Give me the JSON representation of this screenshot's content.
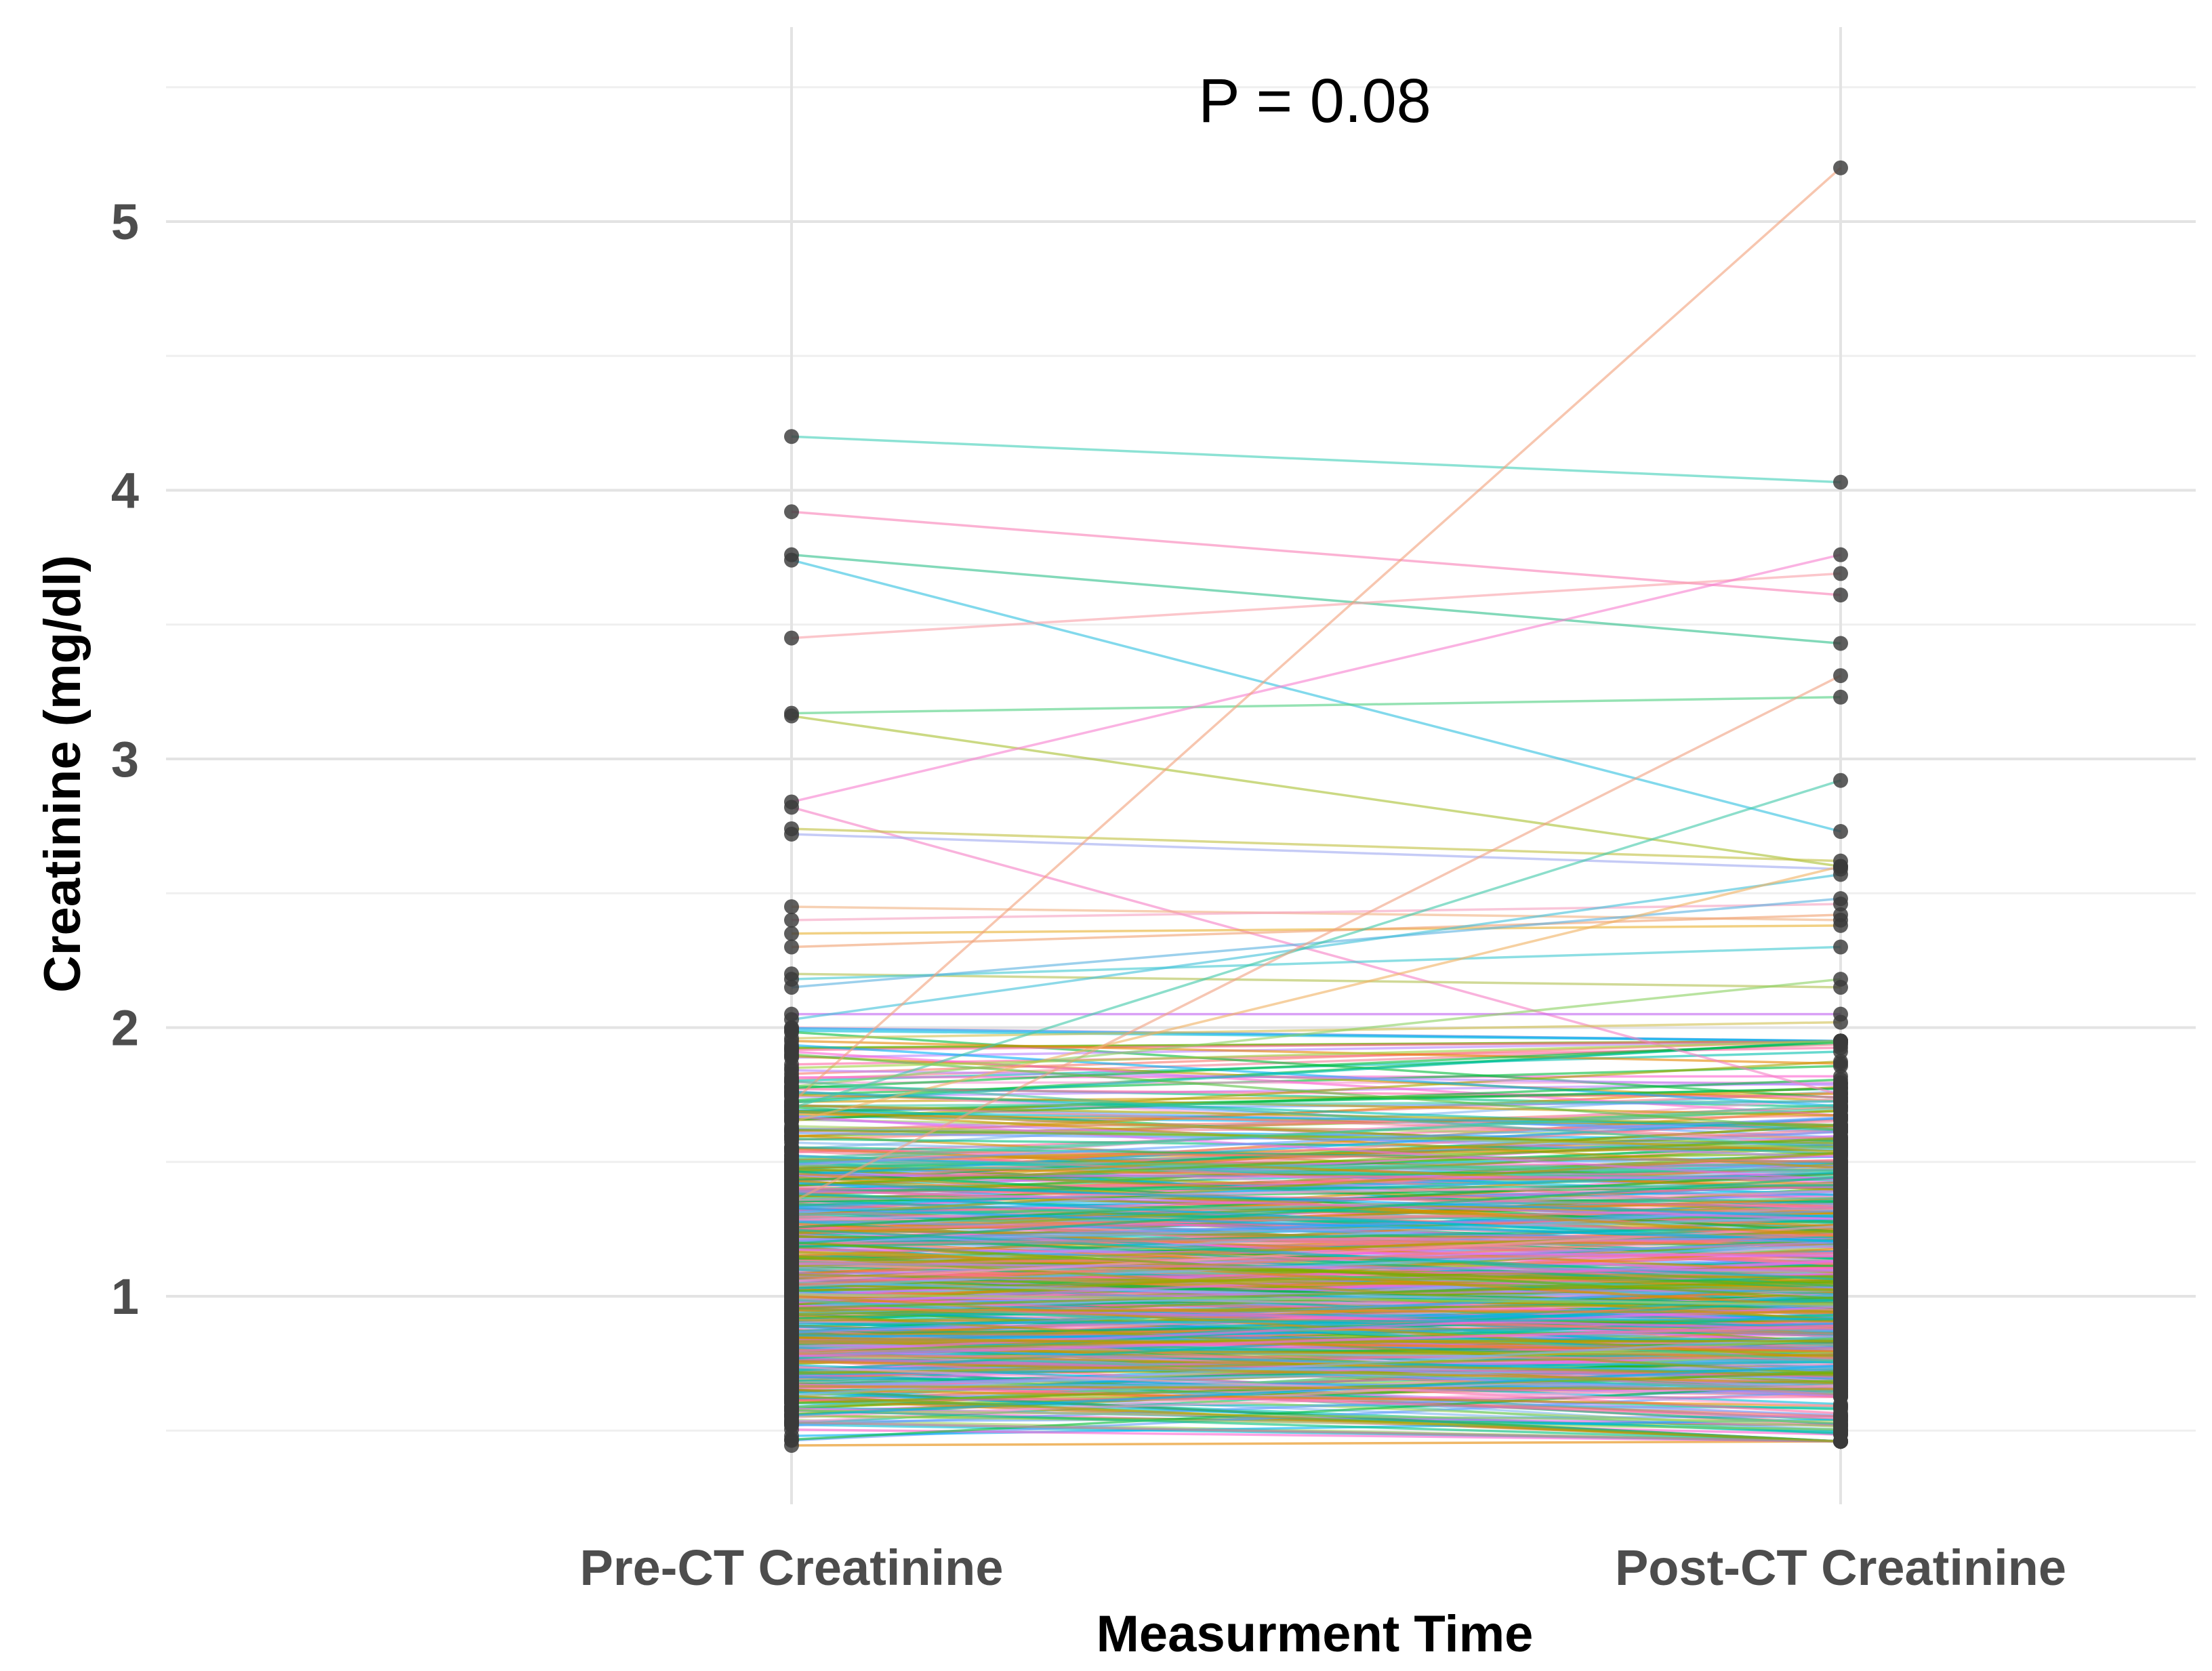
{
  "chart_data": {
    "type": "line",
    "title": "",
    "annotation": "P = 0.08",
    "xlabel": "Measurment Time",
    "ylabel": "Creatinine (mg/dl)",
    "categories": [
      "Pre-CT Creatinine",
      "Post-CT Creatinine"
    ],
    "ylim": [
      0.4,
      5.5
    ],
    "yticks": [
      1,
      2,
      3,
      4,
      5
    ],
    "grid": true,
    "legend": "none",
    "highlighted_pairs": [
      {
        "pre": 4.2,
        "post": 4.03,
        "color": "#3fcfb8"
      },
      {
        "pre": 3.92,
        "post": 3.61,
        "color": "#f97fb5"
      },
      {
        "pre": 3.76,
        "post": 3.43,
        "color": "#2fc08a"
      },
      {
        "pre": 3.74,
        "post": 2.73,
        "color": "#2fc0e0"
      },
      {
        "pre": 3.45,
        "post": 3.69,
        "color": "#f9a0a8"
      },
      {
        "pre": 3.17,
        "post": 3.23,
        "color": "#4fcf80"
      },
      {
        "pre": 3.16,
        "post": 2.6,
        "color": "#a9c030"
      },
      {
        "pre": 2.84,
        "post": 3.76,
        "color": "#f77fcf"
      },
      {
        "pre": 2.82,
        "post": 1.75,
        "color": "#f57fc5"
      },
      {
        "pre": 2.74,
        "post": 2.62,
        "color": "#c0c040"
      },
      {
        "pre": 2.72,
        "post": 2.59,
        "color": "#9fa8f0"
      },
      {
        "pre": 2.45,
        "post": 2.4,
        "color": "#f0b080"
      },
      {
        "pre": 2.4,
        "post": 2.46,
        "color": "#f5a0c0"
      },
      {
        "pre": 2.35,
        "post": 2.38,
        "color": "#e8b030"
      },
      {
        "pre": 2.3,
        "post": 2.42,
        "color": "#f0a070"
      },
      {
        "pre": 2.2,
        "post": 2.15,
        "color": "#b0c050"
      },
      {
        "pre": 2.18,
        "post": 2.3,
        "color": "#40c8d0"
      },
      {
        "pre": 2.15,
        "post": 2.48,
        "color": "#5ab0e0"
      },
      {
        "pre": 2.05,
        "post": 2.05,
        "color": "#c060f0"
      },
      {
        "pre": 2.03,
        "post": 2.57,
        "color": "#40c0d8"
      },
      {
        "pre": 1.96,
        "post": 2.02,
        "color": "#d0c050"
      },
      {
        "pre": 1.9,
        "post": 1.62,
        "color": "#58c040"
      },
      {
        "pre": 1.72,
        "post": 5.2,
        "color": "#f2a07a"
      },
      {
        "pre": 1.7,
        "post": 2.92,
        "color": "#40c8a8"
      },
      {
        "pre": 1.35,
        "post": 3.31,
        "color": "#f0a080"
      },
      {
        "pre": 1.78,
        "post": 2.18,
        "color": "#8ad060"
      },
      {
        "pre": 1.65,
        "post": 2.6,
        "color": "#f0b060"
      },
      {
        "pre": 1.85,
        "post": 1.95,
        "color": "#a0d040"
      },
      {
        "pre": 1.8,
        "post": 1.55,
        "color": "#40c0a0"
      }
    ],
    "bulk": {
      "n_pairs": 700,
      "pre_range": [
        0.43,
        2.0
      ],
      "post_range": [
        0.46,
        1.95
      ],
      "note": "dense mass of patient pairs between ~0.45 and ~2.0 mg/dl"
    }
  }
}
